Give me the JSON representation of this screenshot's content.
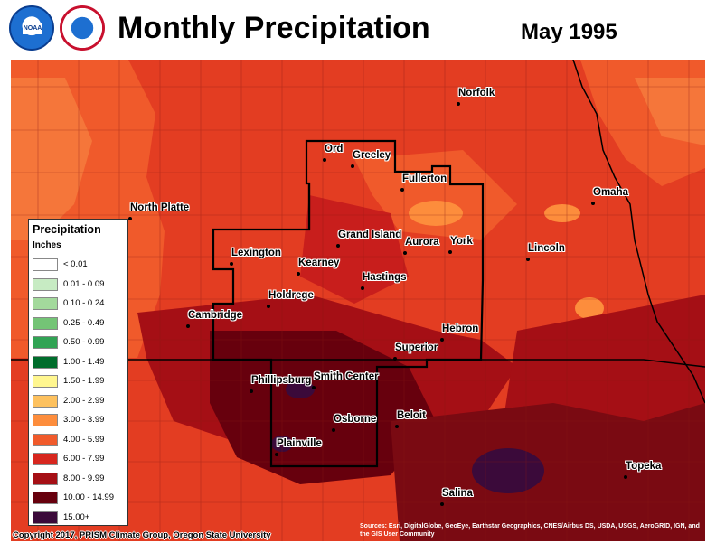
{
  "header": {
    "title": "Monthly Precipitation",
    "date": "May 1995",
    "logos": [
      {
        "name": "noaa-logo",
        "text": "NOAA"
      },
      {
        "name": "nws-logo",
        "text": "NATIONAL WEATHER SERVICE"
      }
    ]
  },
  "cities": [
    {
      "key": "norfolk",
      "name": "Norfolk"
    },
    {
      "key": "ord",
      "name": "Ord"
    },
    {
      "key": "greeley",
      "name": "Greeley"
    },
    {
      "key": "fullerton",
      "name": "Fullerton"
    },
    {
      "key": "north-platte",
      "name": "North Platte"
    },
    {
      "key": "omaha",
      "name": "Omaha"
    },
    {
      "key": "grand-island",
      "name": "Grand Island"
    },
    {
      "key": "aurora",
      "name": "Aurora"
    },
    {
      "key": "york",
      "name": "York"
    },
    {
      "key": "lincoln",
      "name": "Lincoln"
    },
    {
      "key": "lexington",
      "name": "Lexington"
    },
    {
      "key": "kearney",
      "name": "Kearney"
    },
    {
      "key": "hastings",
      "name": "Hastings"
    },
    {
      "key": "holdrege",
      "name": "Holdrege"
    },
    {
      "key": "cambridge",
      "name": "Cambridge"
    },
    {
      "key": "hebron",
      "name": "Hebron"
    },
    {
      "key": "superior",
      "name": "Superior"
    },
    {
      "key": "phillipsburg",
      "name": "Phillipsburg"
    },
    {
      "key": "smith-center",
      "name": "Smith Center"
    },
    {
      "key": "osborne",
      "name": "Osborne"
    },
    {
      "key": "beloit",
      "name": "Beloit"
    },
    {
      "key": "plainville",
      "name": "Plainville"
    },
    {
      "key": "topeka",
      "name": "Topeka"
    },
    {
      "key": "salina",
      "name": "Salina"
    }
  ],
  "legend": {
    "title": "Precipitation",
    "units": "Inches",
    "items": [
      {
        "label": "< 0.01",
        "color": "#ffffff"
      },
      {
        "label": "0.01 - 0.09",
        "color": "#c7ebc3"
      },
      {
        "label": "0.10 - 0.24",
        "color": "#a3d99c"
      },
      {
        "label": "0.25 - 0.49",
        "color": "#74c476"
      },
      {
        "label": "0.50 - 0.99",
        "color": "#31a354"
      },
      {
        "label": "1.00 - 1.49",
        "color": "#006d2c"
      },
      {
        "label": "1.50 - 1.99",
        "color": "#fff68f"
      },
      {
        "label": "2.00 - 2.99",
        "color": "#fdc15e"
      },
      {
        "label": "3.00 - 3.99",
        "color": "#fd8d3c"
      },
      {
        "label": "4.00 - 5.99",
        "color": "#f05a2b"
      },
      {
        "label": "6.00 - 7.99",
        "color": "#d7261e"
      },
      {
        "label": "8.00 - 9.99",
        "color": "#a50f15"
      },
      {
        "label": "10.00 - 14.99",
        "color": "#67000d"
      },
      {
        "label": "15.00+",
        "color": "#3b0a3a"
      }
    ]
  },
  "footer": {
    "copyright": "Copyright 2017, PRISM Climate Group, Oregon State University",
    "sources": "Sources: Esri, DigitalGlobe, GeoEye, Earthstar Geographics, CNES/Airbus DS, USDA, USGS, AeroGRID, IGN, and the GIS User Community"
  }
}
